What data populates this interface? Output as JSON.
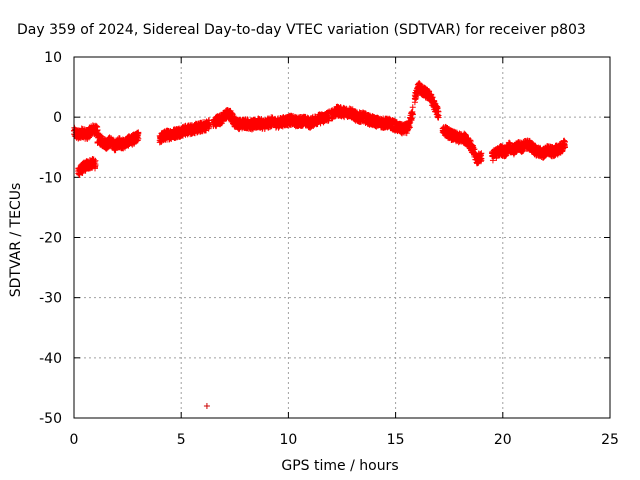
{
  "chart_data": {
    "type": "scatter",
    "title": "Day 359 of 2024, Sidereal Day-to-day VTEC variation (SDTVAR) for receiver p803",
    "xlabel": "GPS time / hours",
    "ylabel": "SDTVAR / TECUs",
    "xlim": [
      0,
      25
    ],
    "ylim": [
      -50,
      10
    ],
    "xticks": [
      0,
      5,
      10,
      15,
      20,
      25
    ],
    "yticks": [
      -50,
      -40,
      -30,
      -20,
      -10,
      0,
      10
    ],
    "grid": true,
    "marker": "+",
    "color": "#ff0000",
    "outlier_color": "#cc0000",
    "series": [
      {
        "name": "SDTVAR",
        "segments": [
          {
            "x": [
              0.0,
              0.2,
              0.4,
              0.6,
              0.8,
              1.0,
              1.1
            ],
            "y": [
              -2.5,
              -3.0,
              -2.5,
              -3.0,
              -2.2,
              -2.0,
              -2.5
            ]
          },
          {
            "x": [
              0.2,
              0.4,
              0.6,
              0.8,
              1.0
            ],
            "y": [
              -9.0,
              -8.5,
              -8.0,
              -7.7,
              -7.8
            ]
          },
          {
            "x": [
              1.1,
              1.3,
              1.5,
              1.7,
              1.9,
              2.1,
              2.3,
              2.5,
              2.7,
              2.9,
              3.0
            ],
            "y": [
              -3.5,
              -4.0,
              -4.5,
              -4.0,
              -4.8,
              -4.2,
              -4.5,
              -4.0,
              -3.8,
              -3.5,
              -3.2
            ]
          },
          {
            "x": [
              4.0,
              4.3,
              4.6,
              4.9,
              5.2,
              5.5,
              5.8,
              6.1,
              6.3
            ],
            "y": [
              -3.5,
              -3.0,
              -2.8,
              -2.5,
              -2.2,
              -2.0,
              -1.8,
              -1.5,
              -1.2
            ]
          },
          {
            "x": [
              6.5,
              6.7,
              6.9,
              7.1,
              7.3,
              7.5,
              7.7,
              8.0,
              8.3,
              8.6,
              8.9,
              9.2,
              9.5,
              9.8,
              10.1,
              10.4,
              10.7,
              11.0,
              11.3,
              11.6,
              11.9
            ],
            "y": [
              -1.0,
              -0.5,
              -0.3,
              0.5,
              0.3,
              -0.8,
              -1.2,
              -1.0,
              -1.3,
              -1.0,
              -1.2,
              -0.8,
              -1.0,
              -0.7,
              -0.5,
              -0.8,
              -0.6,
              -1.0,
              -0.4,
              -0.2,
              0.2
            ]
          },
          {
            "x": [
              12.0,
              12.3,
              12.6,
              12.9,
              13.2,
              13.5,
              13.8,
              14.1,
              14.4,
              14.7,
              15.0,
              15.3,
              15.6,
              15.8
            ],
            "y": [
              0.5,
              1.0,
              0.8,
              0.8,
              0.0,
              0.0,
              -0.5,
              -0.8,
              -1.0,
              -1.0,
              -1.5,
              -2.0,
              -1.8,
              1.0
            ]
          },
          {
            "x": [
              15.9,
              16.0,
              16.1,
              16.2,
              16.4,
              16.6,
              16.8,
              17.0
            ],
            "y": [
              3.0,
              4.5,
              5.0,
              4.5,
              4.0,
              3.5,
              2.0,
              0.5
            ]
          },
          {
            "x": [
              17.2,
              17.4,
              17.6,
              17.8,
              18.0,
              18.2,
              18.4,
              18.6,
              18.8,
              19.0
            ],
            "y": [
              -2.0,
              -2.5,
              -3.0,
              -3.3,
              -3.5,
              -3.5,
              -4.0,
              -5.5,
              -7.0,
              -6.5
            ]
          },
          {
            "x": [
              19.5,
              19.7,
              19.9,
              20.1,
              20.3,
              20.5,
              20.7,
              20.9,
              21.1,
              21.3,
              21.5,
              21.7,
              21.9,
              22.1,
              22.3,
              22.5,
              22.7,
              22.9
            ],
            "y": [
              -6.5,
              -6.0,
              -5.5,
              -5.8,
              -5.0,
              -5.5,
              -4.8,
              -5.0,
              -4.5,
              -4.8,
              -5.5,
              -5.8,
              -6.0,
              -5.5,
              -5.8,
              -5.5,
              -5.2,
              -4.5
            ]
          }
        ]
      }
    ],
    "outliers": [
      {
        "x": 6.2,
        "y": -48.0
      }
    ]
  }
}
